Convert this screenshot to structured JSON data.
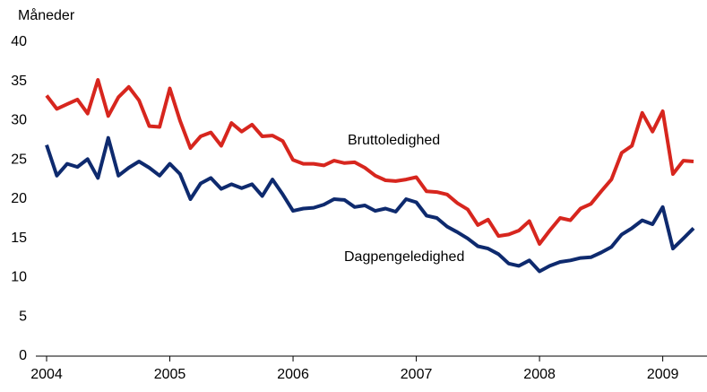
{
  "chart_data": {
    "type": "line",
    "y_label": "Måneder",
    "x": [
      2004,
      2004.083,
      2004.167,
      2004.25,
      2004.333,
      2004.417,
      2004.5,
      2004.583,
      2004.667,
      2004.75,
      2004.833,
      2004.917,
      2005,
      2005.083,
      2005.167,
      2005.25,
      2005.333,
      2005.417,
      2005.5,
      2005.583,
      2005.667,
      2005.75,
      2005.833,
      2005.917,
      2006,
      2006.083,
      2006.167,
      2006.25,
      2006.333,
      2006.417,
      2006.5,
      2006.583,
      2006.667,
      2006.75,
      2006.833,
      2006.917,
      2007,
      2007.083,
      2007.167,
      2007.25,
      2007.333,
      2007.417,
      2007.5,
      2007.583,
      2007.667,
      2007.75,
      2007.833,
      2007.917,
      2008,
      2008.083,
      2008.167,
      2008.25,
      2008.333,
      2008.417,
      2008.5,
      2008.583,
      2008.667,
      2008.75,
      2008.833,
      2008.917,
      2009,
      2009.083,
      2009.167,
      2009.25
    ],
    "series": [
      {
        "name": "Bruttoledighed",
        "color": "#d7261e",
        "values": [
          33.2,
          31.5,
          32.1,
          32.7,
          30.9,
          35.2,
          30.6,
          33.0,
          34.3,
          32.6,
          29.3,
          29.2,
          34.1,
          30.0,
          26.5,
          28.0,
          28.5,
          26.8,
          29.7,
          28.6,
          29.5,
          28.0,
          28.1,
          27.4,
          25.0,
          24.5,
          24.5,
          24.3,
          24.9,
          24.6,
          24.7,
          24.0,
          23.0,
          22.4,
          22.3,
          22.5,
          22.8,
          21.0,
          20.9,
          20.6,
          19.5,
          18.7,
          16.7,
          17.4,
          15.3,
          15.5,
          16.0,
          17.2,
          14.3,
          16.0,
          17.6,
          17.3,
          18.8,
          19.4,
          21.0,
          22.5,
          25.9,
          26.8,
          31.0,
          28.6,
          31.2,
          23.2,
          24.9,
          24.8
        ]
      },
      {
        "name": "Dagpengeledighed",
        "color": "#0e2a6e",
        "values": [
          26.9,
          23.0,
          24.5,
          24.1,
          25.1,
          22.7,
          27.8,
          23.0,
          24.0,
          24.8,
          24.0,
          23.0,
          24.5,
          23.2,
          20.0,
          22.0,
          22.7,
          21.3,
          21.9,
          21.4,
          21.9,
          20.4,
          22.5,
          20.6,
          18.5,
          18.8,
          18.9,
          19.3,
          20.0,
          19.9,
          19.0,
          19.2,
          18.5,
          18.8,
          18.4,
          20.0,
          19.6,
          17.9,
          17.6,
          16.5,
          15.8,
          15.0,
          14.0,
          13.7,
          13.0,
          11.8,
          11.5,
          12.2,
          10.8,
          11.5,
          12.0,
          12.2,
          12.5,
          12.6,
          13.2,
          13.9,
          15.5,
          16.3,
          17.3,
          16.8,
          19.0,
          13.7,
          15.0,
          16.3
        ]
      }
    ],
    "xlim": [
      2004,
      2009.33
    ],
    "xticks": [
      2004,
      2005,
      2006,
      2007,
      2008,
      2009
    ],
    "ylim": [
      0,
      40
    ],
    "yticks": [
      0,
      5,
      10,
      15,
      20,
      25,
      30,
      35,
      40
    ]
  }
}
